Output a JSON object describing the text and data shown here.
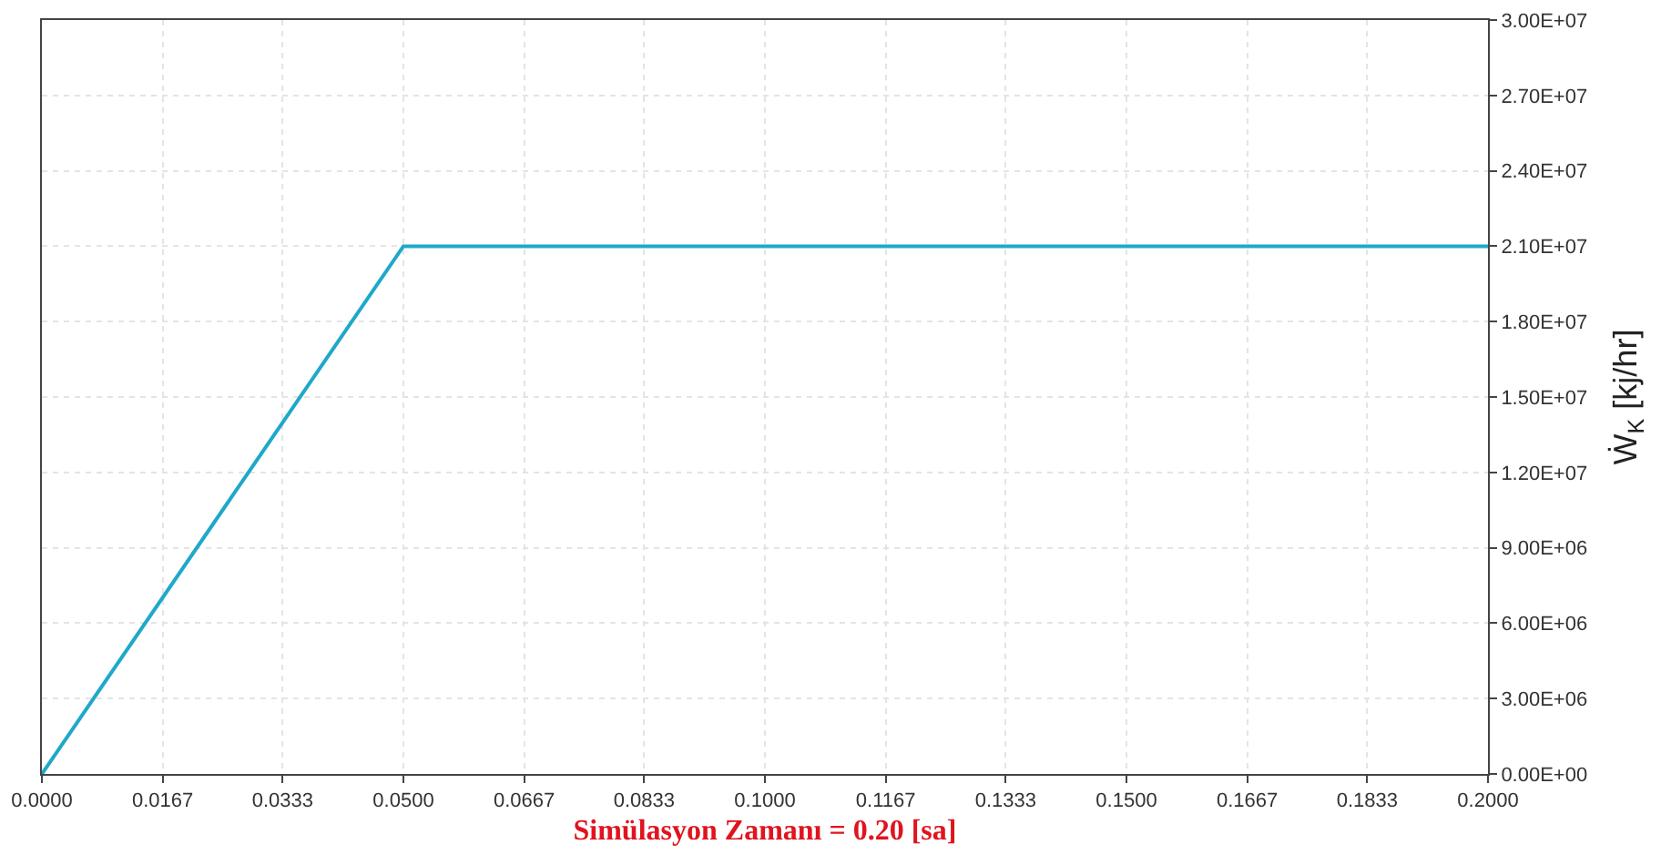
{
  "chart_data": {
    "type": "line",
    "xlabel": "Simülasyon Zamanı = 0.20 [sa]",
    "ylabel": "Ẇ$_{K}$ [kj/hr]",
    "x": [
      0,
      0.05,
      0.2
    ],
    "series": [
      {
        "color": "#1fa8c9",
        "values": [
          0,
          21000000,
          21000000
        ]
      }
    ],
    "xlim": [
      0,
      0.2
    ],
    "xticks": [
      {
        "value": 0,
        "label": "0.0000"
      },
      {
        "value": 0.0167,
        "label": "0.0167"
      },
      {
        "value": 0.0333,
        "label": "0.0333"
      },
      {
        "value": 0.05,
        "label": "0.0500"
      },
      {
        "value": 0.0667,
        "label": "0.0667"
      },
      {
        "value": 0.0833,
        "label": "0.0833"
      },
      {
        "value": 0.1,
        "label": "0.1000"
      },
      {
        "value": 0.1167,
        "label": "0.1167"
      },
      {
        "value": 0.1333,
        "label": "0.1333"
      },
      {
        "value": 0.15,
        "label": "0.1500"
      },
      {
        "value": 0.1667,
        "label": "0.1667"
      },
      {
        "value": 0.1833,
        "label": "0.1833"
      },
      {
        "value": 0.2,
        "label": "0.2000"
      }
    ],
    "ylim": [
      0,
      30000000
    ],
    "yticks": [
      {
        "value": 0,
        "label": "0.00E+00"
      },
      {
        "value": 3000000,
        "label": "3.00E+06"
      },
      {
        "value": 6000000,
        "label": "6.00E+06"
      },
      {
        "value": 9000000,
        "label": "9.00E+06"
      },
      {
        "value": 12000000,
        "label": "1.20E+07"
      },
      {
        "value": 15000000,
        "label": "1.50E+07"
      },
      {
        "value": 18000000,
        "label": "1.80E+07"
      },
      {
        "value": 21000000,
        "label": "2.10E+07"
      },
      {
        "value": 24000000,
        "label": "2.40E+07"
      },
      {
        "value": 27000000,
        "label": "2.70E+07"
      },
      {
        "value": 30000000,
        "label": "3.00E+07"
      }
    ],
    "grid": true,
    "marker": "none",
    "line_style": "solid"
  }
}
